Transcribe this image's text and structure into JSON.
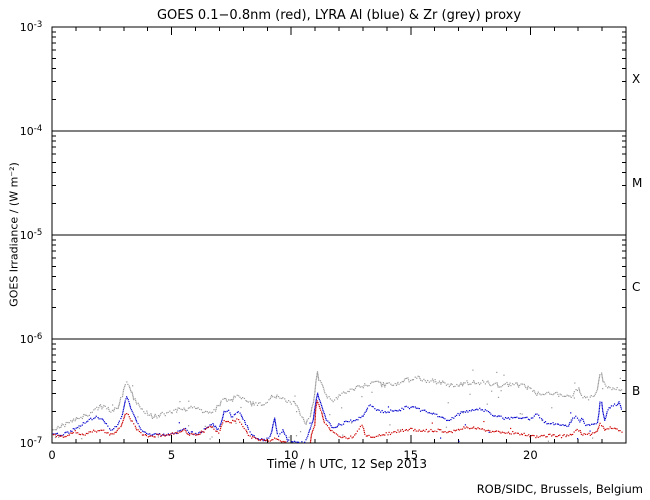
{
  "credit": "ROB/SIDC, Brussels, Belgium",
  "chart_data": {
    "type": "scatter",
    "title": "GOES 0.1−0.8nm (red), LYRA Al (blue) & Zr (grey) proxy",
    "xlabel": "Time / h UTC, 12 Sep 2013",
    "ylabel": "GOES Irradiance / (W m⁻²)",
    "xlim": [
      0,
      24
    ],
    "ylim": [
      1e-07,
      0.001
    ],
    "ylog": true,
    "grid": false,
    "x_major_ticks": [
      0,
      5,
      10,
      15,
      20
    ],
    "x_minor_step": 1,
    "y_decades": [
      -3,
      -4,
      -5,
      -6,
      -7
    ],
    "hlines_decades": [
      -4,
      -5,
      -6
    ],
    "flare_classes": [
      {
        "label": "X",
        "band": [
          -4,
          -3
        ]
      },
      {
        "label": "M",
        "band": [
          -5,
          -4
        ]
      },
      {
        "label": "C",
        "band": [
          -6,
          -5
        ]
      },
      {
        "label": "B",
        "band": [
          -7,
          -6
        ]
      }
    ],
    "dot_step_h": 0.06,
    "x_end_h": 23.83,
    "series": [
      {
        "name": "GOES 0.1-0.8nm",
        "color": "#cc0000",
        "seed": 11,
        "noise_dex": 0.013,
        "outliers_below": 5,
        "outliers_above": 3,
        "outlier_spread_below": 0.15,
        "outlier_spread_above": 0.05,
        "points": [
          [
            0,
            1.2e-07
          ],
          [
            0.3,
            1.17e-07
          ],
          [
            0.6,
            1.15e-07
          ],
          [
            0.95,
            1.3e-07
          ],
          [
            1.2,
            1.18e-07
          ],
          [
            1.5,
            1.25e-07
          ],
          [
            1.8,
            1.3e-07
          ],
          [
            2.1,
            1.35e-07
          ],
          [
            2.4,
            1.2e-07
          ],
          [
            2.7,
            1.3e-07
          ],
          [
            2.9,
            1.45e-07
          ],
          [
            3.1,
            2e-07
          ],
          [
            3.25,
            1.75e-07
          ],
          [
            3.45,
            1.45e-07
          ],
          [
            3.7,
            1.25e-07
          ],
          [
            4.0,
            1.15e-07
          ],
          [
            4.4,
            1.18e-07
          ],
          [
            4.8,
            1.2e-07
          ],
          [
            5.1,
            1.22e-07
          ],
          [
            5.5,
            1.35e-07
          ],
          [
            5.75,
            1.2e-07
          ],
          [
            6.0,
            1.2e-07
          ],
          [
            6.3,
            1.28e-07
          ],
          [
            6.7,
            1.45e-07
          ],
          [
            6.95,
            1.25e-07
          ],
          [
            7.2,
            1.68e-07
          ],
          [
            7.4,
            1.55e-07
          ],
          [
            7.6,
            1.62e-07
          ],
          [
            7.8,
            1.72e-07
          ],
          [
            8.0,
            1.4e-07
          ],
          [
            8.3,
            1.15e-07
          ],
          [
            8.6,
            1.07e-07
          ],
          [
            9.0,
            1.06e-07
          ],
          [
            9.3,
            1.1e-07
          ],
          [
            9.6,
            1.05e-07
          ],
          [
            9.9,
            9.9e-08
          ],
          [
            10.2,
            9.6e-08
          ],
          [
            10.5,
            9.7e-08
          ],
          [
            10.8,
            1.05e-07
          ],
          [
            10.98,
            1.5e-07
          ],
          [
            11.08,
            2.7e-07
          ],
          [
            11.2,
            2.2e-07
          ],
          [
            11.4,
            1.6e-07
          ],
          [
            11.6,
            1.35e-07
          ],
          [
            11.9,
            1.22e-07
          ],
          [
            12.2,
            1.12e-07
          ],
          [
            12.6,
            1.15e-07
          ],
          [
            12.95,
            1.5e-07
          ],
          [
            13.1,
            1.2e-07
          ],
          [
            13.4,
            1.15e-07
          ],
          [
            13.8,
            1.2e-07
          ],
          [
            14.2,
            1.25e-07
          ],
          [
            14.6,
            1.32e-07
          ],
          [
            15.0,
            1.35e-07
          ],
          [
            15.4,
            1.3e-07
          ],
          [
            15.8,
            1.32e-07
          ],
          [
            16.2,
            1.33e-07
          ],
          [
            16.6,
            1.27e-07
          ],
          [
            17.0,
            1.35e-07
          ],
          [
            17.4,
            1.42e-07
          ],
          [
            17.8,
            1.38e-07
          ],
          [
            18.2,
            1.32e-07
          ],
          [
            18.6,
            1.28e-07
          ],
          [
            19.0,
            1.26e-07
          ],
          [
            19.4,
            1.25e-07
          ],
          [
            19.8,
            1.2e-07
          ],
          [
            20.1,
            1.15e-07
          ],
          [
            20.5,
            1.17e-07
          ],
          [
            20.9,
            1.18e-07
          ],
          [
            21.3,
            1.16e-07
          ],
          [
            21.7,
            1.2e-07
          ],
          [
            22.0,
            1.35e-07
          ],
          [
            22.15,
            1.22e-07
          ],
          [
            22.5,
            1.2e-07
          ],
          [
            22.75,
            1.25e-07
          ],
          [
            22.95,
            1.55e-07
          ],
          [
            23.1,
            1.32e-07
          ],
          [
            23.35,
            1.42e-07
          ],
          [
            23.6,
            1.36e-07
          ],
          [
            23.83,
            1.3e-07
          ]
        ]
      },
      {
        "name": "LYRA Al proxy",
        "color": "#0000cc",
        "seed": 22,
        "noise_dex": 0.013,
        "outliers_below": 14,
        "outliers_above": 4,
        "outlier_spread_below": 0.28,
        "outlier_spread_above": 0.07,
        "points": [
          [
            0,
            1.25e-07
          ],
          [
            0.4,
            1.2e-07
          ],
          [
            0.8,
            1.3e-07
          ],
          [
            1.1,
            1.45e-07
          ],
          [
            1.5,
            1.65e-07
          ],
          [
            1.9,
            1.78e-07
          ],
          [
            2.15,
            1.68e-07
          ],
          [
            2.45,
            1.35e-07
          ],
          [
            2.7,
            1.42e-07
          ],
          [
            2.9,
            1.7e-07
          ],
          [
            3.1,
            2.9e-07
          ],
          [
            3.3,
            2.2e-07
          ],
          [
            3.55,
            1.55e-07
          ],
          [
            3.8,
            1.28e-07
          ],
          [
            4.1,
            1.2e-07
          ],
          [
            4.5,
            1.2e-07
          ],
          [
            4.9,
            1.22e-07
          ],
          [
            5.2,
            1.25e-07
          ],
          [
            5.5,
            1.4e-07
          ],
          [
            5.8,
            1.25e-07
          ],
          [
            6.1,
            1.22e-07
          ],
          [
            6.4,
            1.35e-07
          ],
          [
            6.7,
            1.55e-07
          ],
          [
            6.95,
            1.32e-07
          ],
          [
            7.2,
            2e-07
          ],
          [
            7.35,
            2.1e-07
          ],
          [
            7.55,
            1.75e-07
          ],
          [
            7.8,
            2.05e-07
          ],
          [
            8.05,
            1.6e-07
          ],
          [
            8.3,
            1.25e-07
          ],
          [
            8.6,
            1.1e-07
          ],
          [
            8.9,
            1.05e-07
          ],
          [
            9.15,
            1.15e-07
          ],
          [
            9.3,
            1.75e-07
          ],
          [
            9.45,
            1.12e-07
          ],
          [
            9.65,
            1.35e-07
          ],
          [
            9.85,
            1.05e-07
          ],
          [
            10.2,
            1e-07
          ],
          [
            10.6,
            1.03e-07
          ],
          [
            10.95,
            1.8e-07
          ],
          [
            11.08,
            3.2e-07
          ],
          [
            11.25,
            2.3e-07
          ],
          [
            11.5,
            1.6e-07
          ],
          [
            11.75,
            1.4e-07
          ],
          [
            12.0,
            1.5e-07
          ],
          [
            12.35,
            1.6e-07
          ],
          [
            12.7,
            1.68e-07
          ],
          [
            13.0,
            1.8e-07
          ],
          [
            13.3,
            2.4e-07
          ],
          [
            13.55,
            2.1e-07
          ],
          [
            13.85,
            2e-07
          ],
          [
            14.15,
            2.02e-07
          ],
          [
            14.5,
            2.08e-07
          ],
          [
            14.85,
            2.2e-07
          ],
          [
            15.15,
            2.18e-07
          ],
          [
            15.5,
            2.05e-07
          ],
          [
            15.85,
            1.95e-07
          ],
          [
            16.2,
            1.8e-07
          ],
          [
            16.6,
            1.62e-07
          ],
          [
            17.1,
            1.95e-07
          ],
          [
            17.5,
            2.05e-07
          ],
          [
            17.85,
            2.12e-07
          ],
          [
            18.2,
            2e-07
          ],
          [
            18.5,
            1.85e-07
          ],
          [
            18.9,
            1.72e-07
          ],
          [
            19.3,
            1.75e-07
          ],
          [
            19.7,
            1.72e-07
          ],
          [
            20.0,
            1.72e-07
          ],
          [
            20.3,
            1.9e-07
          ],
          [
            20.5,
            1.62e-07
          ],
          [
            20.8,
            1.55e-07
          ],
          [
            21.2,
            1.52e-07
          ],
          [
            21.6,
            1.48e-07
          ],
          [
            21.9,
            1.85e-07
          ],
          [
            22.05,
            1.6e-07
          ],
          [
            22.15,
            1.72e-07
          ],
          [
            22.35,
            1.45e-07
          ],
          [
            22.6,
            1.5e-07
          ],
          [
            22.8,
            1.55e-07
          ],
          [
            22.95,
            2.7e-07
          ],
          [
            23.1,
            1.65e-07
          ],
          [
            23.25,
            2.1e-07
          ],
          [
            23.5,
            2.3e-07
          ],
          [
            23.7,
            2.45e-07
          ],
          [
            23.83,
            2.1e-07
          ]
        ]
      },
      {
        "name": "LYRA Zr proxy",
        "color": "#999999",
        "seed": 33,
        "noise_dex": 0.022,
        "outliers_below": 55,
        "outliers_above": 10,
        "outlier_spread_below": 0.42,
        "outlier_spread_above": 0.09,
        "points": [
          [
            0,
            1.3e-07
          ],
          [
            0.35,
            1.45e-07
          ],
          [
            0.7,
            1.55e-07
          ],
          [
            1.0,
            1.68e-07
          ],
          [
            1.35,
            1.82e-07
          ],
          [
            1.7,
            2e-07
          ],
          [
            2.0,
            2.25e-07
          ],
          [
            2.2,
            2.22e-07
          ],
          [
            2.4,
            2.08e-07
          ],
          [
            2.6,
            2.05e-07
          ],
          [
            2.8,
            2.3e-07
          ],
          [
            3.15,
            4e-07
          ],
          [
            3.4,
            2.75e-07
          ],
          [
            3.6,
            2.35e-07
          ],
          [
            3.85,
            2e-07
          ],
          [
            4.2,
            1.8e-07
          ],
          [
            4.55,
            1.85e-07
          ],
          [
            4.85,
            1.95e-07
          ],
          [
            5.2,
            2.08e-07
          ],
          [
            5.55,
            2.1e-07
          ],
          [
            5.85,
            2.2e-07
          ],
          [
            6.1,
            2.15e-07
          ],
          [
            6.45,
            1.95e-07
          ],
          [
            6.8,
            2.05e-07
          ],
          [
            7.2,
            2.7e-07
          ],
          [
            7.45,
            2.5e-07
          ],
          [
            7.75,
            2.85e-07
          ],
          [
            8.0,
            2.6e-07
          ],
          [
            8.3,
            2.4e-07
          ],
          [
            8.6,
            2.3e-07
          ],
          [
            8.9,
            2.4e-07
          ],
          [
            9.2,
            2.75e-07
          ],
          [
            9.45,
            2.9e-07
          ],
          [
            9.7,
            2.6e-07
          ],
          [
            9.95,
            2.45e-07
          ],
          [
            10.15,
            2.5e-07
          ],
          [
            10.4,
            1.9e-07
          ],
          [
            10.6,
            1.5e-07
          ],
          [
            10.8,
            1.85e-07
          ],
          [
            10.98,
            3e-07
          ],
          [
            11.08,
            4.75e-07
          ],
          [
            11.25,
            3.6e-07
          ],
          [
            11.5,
            2.75e-07
          ],
          [
            11.72,
            2.5e-07
          ],
          [
            12.0,
            2.8e-07
          ],
          [
            12.3,
            3.1e-07
          ],
          [
            12.65,
            3.3e-07
          ],
          [
            13.0,
            3.5e-07
          ],
          [
            13.5,
            3.8e-07
          ],
          [
            13.9,
            3.6e-07
          ],
          [
            14.35,
            3.7e-07
          ],
          [
            14.8,
            4e-07
          ],
          [
            15.3,
            4.2e-07
          ],
          [
            15.7,
            4e-07
          ],
          [
            16.1,
            3.85e-07
          ],
          [
            16.5,
            3.7e-07
          ],
          [
            16.9,
            3.55e-07
          ],
          [
            17.4,
            3.8e-07
          ],
          [
            18.0,
            3.85e-07
          ],
          [
            18.4,
            3.7e-07
          ],
          [
            18.7,
            3.6e-07
          ],
          [
            19.1,
            3.65e-07
          ],
          [
            19.5,
            3.6e-07
          ],
          [
            19.9,
            3.4e-07
          ],
          [
            20.2,
            3.05e-07
          ],
          [
            20.5,
            2.9e-07
          ],
          [
            20.9,
            3e-07
          ],
          [
            21.3,
            2.9e-07
          ],
          [
            21.7,
            2.78e-07
          ],
          [
            22.0,
            3.4e-07
          ],
          [
            22.15,
            2.75e-07
          ],
          [
            22.4,
            2.65e-07
          ],
          [
            22.7,
            2.8e-07
          ],
          [
            22.95,
            4.7e-07
          ],
          [
            23.15,
            3.4e-07
          ],
          [
            23.3,
            3.55e-07
          ],
          [
            23.5,
            3.3e-07
          ],
          [
            23.7,
            3.25e-07
          ],
          [
            23.83,
            3.1e-07
          ]
        ]
      }
    ]
  }
}
